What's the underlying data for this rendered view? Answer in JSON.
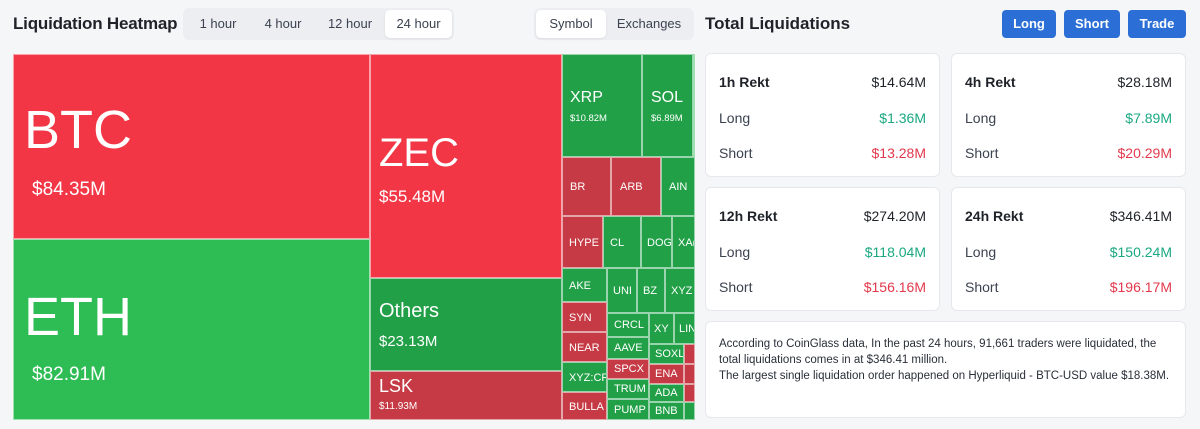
{
  "header": {
    "title": "Liquidation Heatmap",
    "time_tabs": [
      "1 hour",
      "4 hour",
      "12 hour",
      "24 hour"
    ],
    "active_time_tab": "24 hour",
    "view_tabs": [
      "Symbol",
      "Exchanges"
    ],
    "active_view_tab": "Symbol"
  },
  "totals": {
    "title": "Total Liquidations",
    "buttons": [
      "Long",
      "Short",
      "Trade"
    ],
    "cards": [
      {
        "label": "1h Rekt",
        "total": "$14.64M",
        "long_label": "Long",
        "long": "$1.36M",
        "short_label": "Short",
        "short": "$13.28M"
      },
      {
        "label": "4h Rekt",
        "total": "$28.18M",
        "long_label": "Long",
        "long": "$7.89M",
        "short_label": "Short",
        "short": "$20.29M"
      },
      {
        "label": "12h Rekt",
        "total": "$274.20M",
        "long_label": "Long",
        "long": "$118.04M",
        "short_label": "Short",
        "short": "$156.16M"
      },
      {
        "label": "24h Rekt",
        "total": "$346.41M",
        "long_label": "Long",
        "long": "$150.24M",
        "short_label": "Short",
        "short": "$196.17M"
      }
    ],
    "summary_line1": "According to CoinGlass data, In the past 24 hours, 91,661 traders were liquidated, the total liquidations comes in at $346.41 million.",
    "summary_line2": "The largest single liquidation order happened on Hyperliquid - BTC-USD value $18.38M."
  },
  "colors": {
    "red": "#f23645",
    "dark_red": "#c53a44",
    "green": "#2ebd55",
    "dark_green": "#21a047",
    "accent_blue": "#2b6ed6"
  },
  "heatmap": {
    "tiles": {
      "btc": {
        "symbol": "BTC",
        "value": "$84.35M"
      },
      "eth": {
        "symbol": "ETH",
        "value": "$82.91M"
      },
      "zec": {
        "symbol": "ZEC",
        "value": "$55.48M"
      },
      "others": {
        "symbol": "Others",
        "value": "$23.13M"
      },
      "lsk": {
        "symbol": "LSK",
        "value": "$11.93M"
      },
      "xrp": {
        "symbol": "XRP",
        "value": "$10.82M"
      },
      "sol": {
        "symbol": "SOL",
        "value": "$6.89M"
      },
      "br": {
        "symbol": "BR"
      },
      "arb": {
        "symbol": "ARB"
      },
      "ain": {
        "symbol": "AIN"
      },
      "hype": {
        "symbol": "HYPE"
      },
      "cl": {
        "symbol": "CL"
      },
      "doge": {
        "symbol": "DOG"
      },
      "xa": {
        "symbol": "XA("
      },
      "ake": {
        "symbol": "AKE"
      },
      "uni": {
        "symbol": "UNI"
      },
      "bz": {
        "symbol": "BZ"
      },
      "xy1": {
        "symbol": "XYZ"
      },
      "syn": {
        "symbol": "SYN"
      },
      "crcl": {
        "symbol": "CRCL"
      },
      "xy2": {
        "symbol": "XY"
      },
      "lin": {
        "symbol": "LIN"
      },
      "near": {
        "symbol": "NEAR"
      },
      "aave": {
        "symbol": "AAVE"
      },
      "sox": {
        "symbol": "SOXL"
      },
      "xyzcr": {
        "symbol": "XYZ:CR("
      },
      "spcx": {
        "symbol": "SPCX"
      },
      "ena": {
        "symbol": "ENA"
      },
      "trum": {
        "symbol": "TRUM"
      },
      "ada": {
        "symbol": "ADA"
      },
      "bulla": {
        "symbol": "BULLA"
      },
      "pump": {
        "symbol": "PUMP"
      },
      "bnb": {
        "symbol": "BNB"
      }
    }
  }
}
